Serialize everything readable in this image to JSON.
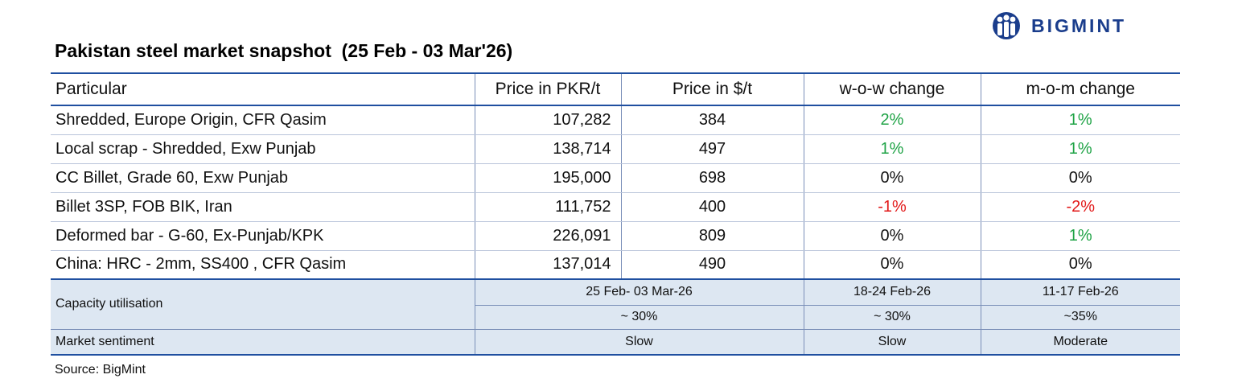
{
  "brand": {
    "name": "BIGMINT",
    "color": "#1a3d8c",
    "logo_icon": "bigmint-people-icon"
  },
  "title": "Pakistan steel market snapshot  (25 Feb - 03 Mar'26)",
  "headers": [
    "Particular",
    "Price in PKR/t",
    "Price in $/t",
    "w-o-w change",
    "m-o-m change"
  ],
  "rows": [
    {
      "particular": "Shredded, Europe Origin, CFR Qasim",
      "pkr": "107,282",
      "usd": "384",
      "wow": "2%",
      "mom": "1%"
    },
    {
      "particular": "Local scrap - Shredded, Exw Punjab",
      "pkr": "138,714",
      "usd": "497",
      "wow": "1%",
      "mom": "1%"
    },
    {
      "particular": "CC Billet, Grade 60, Exw Punjab",
      "pkr": "195,000",
      "usd": "698",
      "wow": "0%",
      "mom": "0%"
    },
    {
      "particular": "Billet 3SP, FOB BIK, Iran",
      "pkr": "111,752",
      "usd": "400",
      "wow": "-1%",
      "mom": "-2%"
    },
    {
      "particular": "Deformed bar - G-60, Ex-Punjab/KPK",
      "pkr": "226,091",
      "usd": "809",
      "wow": "0%",
      "mom": "1%"
    },
    {
      "particular": "China: HRC - 2mm, SS400 , CFR Qasim",
      "pkr": "137,014",
      "usd": "490",
      "wow": "0%",
      "mom": "0%"
    }
  ],
  "capacity": {
    "label": "Capacity utilisation",
    "periods": [
      "25 Feb- 03 Mar-26",
      "18-24 Feb-26",
      "11-17 Feb-26"
    ],
    "values": [
      "~ 30%",
      "~ 30%",
      "~35%"
    ]
  },
  "sentiment": {
    "label": "Market sentiment",
    "values": [
      "Slow",
      "Slow",
      "Moderate"
    ]
  },
  "source": "Source: BigMint",
  "colors": {
    "positive": "#1fa346",
    "negative": "#e21a1a",
    "rule": "#1f4fa0",
    "band": "#dde7f2"
  }
}
